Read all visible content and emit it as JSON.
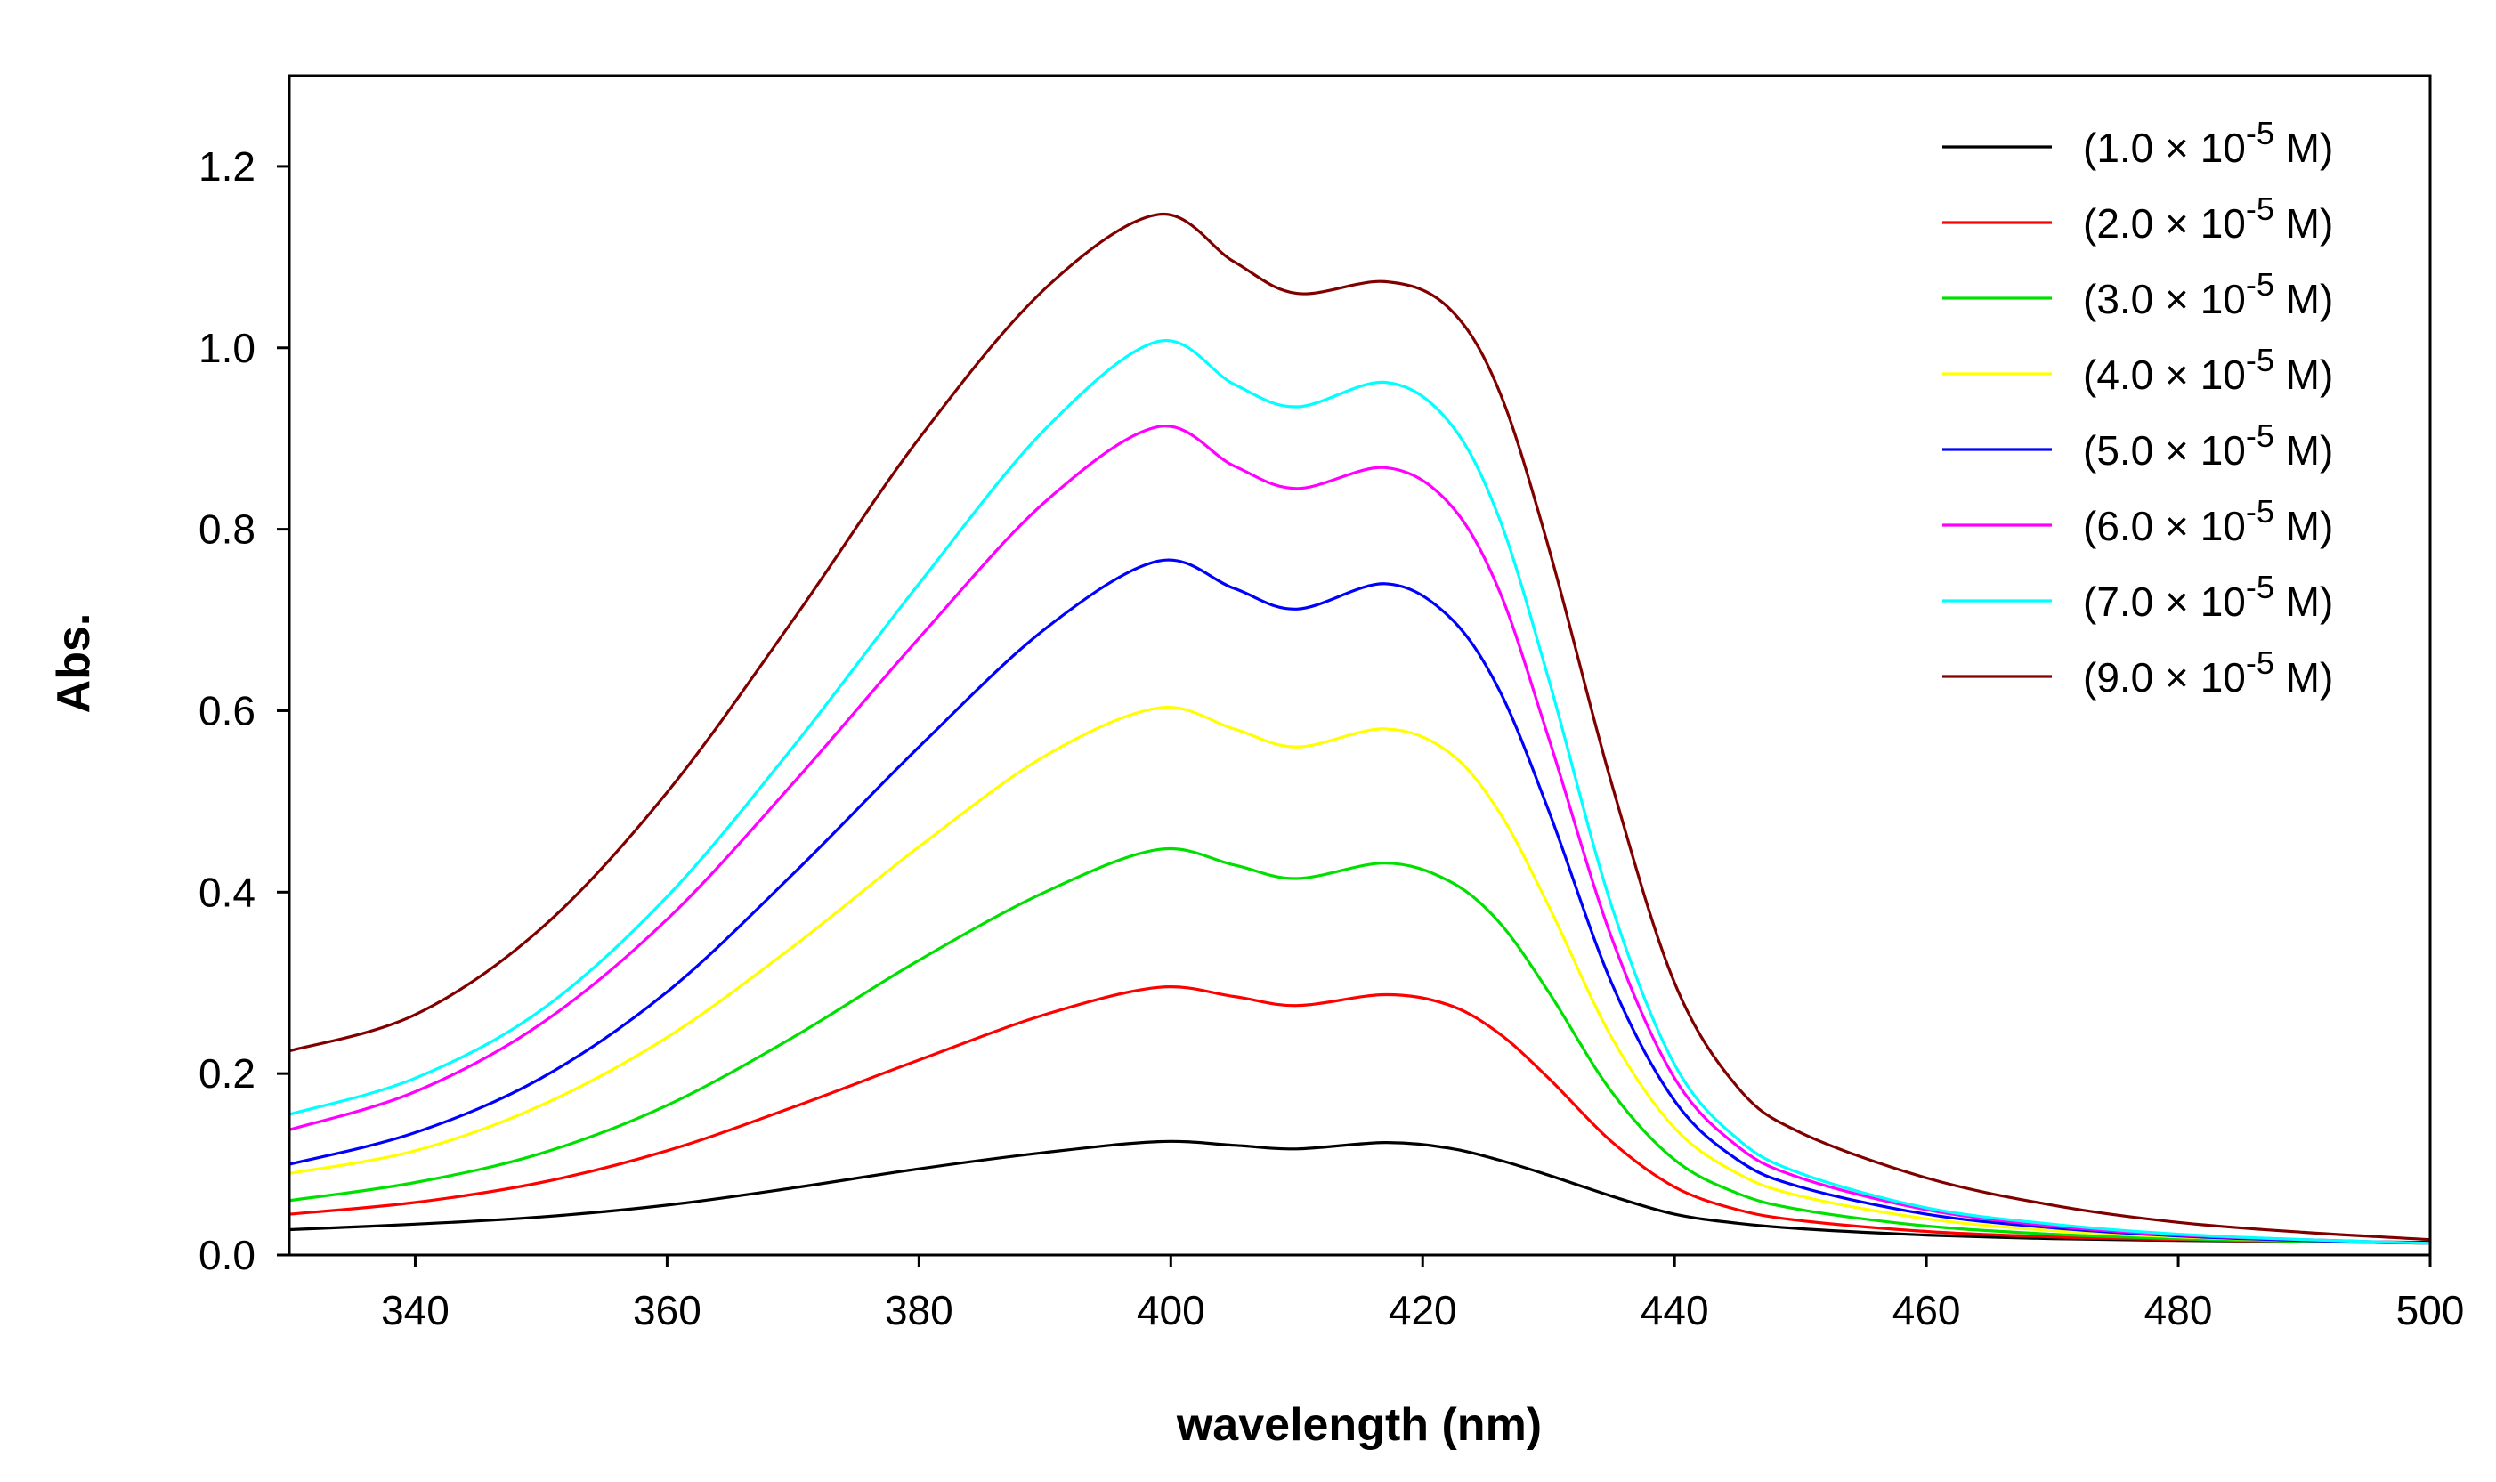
{
  "chart_data": {
    "type": "line",
    "title": "",
    "xlabel": "wavelength (nm)",
    "ylabel": "Abs.",
    "xlim": [
      330,
      500
    ],
    "ylim": [
      0.0,
      1.3
    ],
    "x_ticks": [
      340,
      360,
      380,
      400,
      420,
      440,
      460,
      480,
      500
    ],
    "x_tick_labels": [
      "340",
      "360",
      "380",
      "400",
      "420",
      "440",
      "460",
      "480",
      "500"
    ],
    "y_ticks": [
      0.0,
      0.2,
      0.4,
      0.6,
      0.8,
      1.0,
      1.2
    ],
    "y_tick_labels": [
      "0.0",
      "0.2",
      "0.4",
      "0.6",
      "0.8",
      "1.0",
      "1.2"
    ],
    "grid": false,
    "legend_position": "top-right",
    "x": [
      330,
      340,
      350,
      360,
      370,
      380,
      390,
      399,
      405,
      410,
      417,
      422,
      426,
      430,
      435,
      440,
      445,
      450,
      460,
      470,
      480,
      490,
      500
    ],
    "series": [
      {
        "name_prefix": "(1.0 × 10",
        "exponent": "-5",
        "name_suffix": " M)",
        "color": "#000000",
        "values": [
          0.028,
          0.034,
          0.042,
          0.055,
          0.074,
          0.095,
          0.113,
          0.125,
          0.121,
          0.117,
          0.124,
          0.118,
          0.105,
          0.088,
          0.065,
          0.045,
          0.035,
          0.029,
          0.022,
          0.018,
          0.016,
          0.015,
          0.014
        ]
      },
      {
        "name_prefix": "(2.0 × 10",
        "exponent": "-5",
        "name_suffix": " M)",
        "color": "#ff0000",
        "values": [
          0.045,
          0.058,
          0.08,
          0.115,
          0.163,
          0.215,
          0.265,
          0.295,
          0.285,
          0.275,
          0.287,
          0.276,
          0.245,
          0.195,
          0.125,
          0.075,
          0.05,
          0.038,
          0.026,
          0.02,
          0.017,
          0.015,
          0.013
        ]
      },
      {
        "name_prefix": "(3.0 × 10",
        "exponent": "-5",
        "name_suffix": " M)",
        "color": "#00e000",
        "values": [
          0.06,
          0.08,
          0.112,
          0.165,
          0.24,
          0.325,
          0.4,
          0.447,
          0.43,
          0.415,
          0.432,
          0.413,
          0.368,
          0.29,
          0.18,
          0.105,
          0.068,
          0.05,
          0.032,
          0.023,
          0.018,
          0.015,
          0.013
        ]
      },
      {
        "name_prefix": "(4.0 × 10",
        "exponent": "-5",
        "name_suffix": " M)",
        "color": "#ffff00",
        "values": [
          0.09,
          0.115,
          0.165,
          0.24,
          0.34,
          0.45,
          0.55,
          0.603,
          0.58,
          0.56,
          0.58,
          0.555,
          0.49,
          0.385,
          0.24,
          0.14,
          0.09,
          0.065,
          0.04,
          0.027,
          0.02,
          0.016,
          0.013
        ]
      },
      {
        "name_prefix": "(5.0 × 10",
        "exponent": "-5",
        "name_suffix": " M)",
        "color": "#0000ff",
        "values": [
          0.1,
          0.135,
          0.195,
          0.29,
          0.42,
          0.56,
          0.69,
          0.765,
          0.735,
          0.712,
          0.74,
          0.705,
          0.625,
          0.49,
          0.3,
          0.17,
          0.105,
          0.075,
          0.045,
          0.03,
          0.021,
          0.016,
          0.013
        ]
      },
      {
        "name_prefix": "(6.0 × 10",
        "exponent": "-5",
        "name_suffix": " M)",
        "color": "#ff00ff",
        "values": [
          0.138,
          0.18,
          0.255,
          0.37,
          0.52,
          0.68,
          0.83,
          0.913,
          0.87,
          0.845,
          0.868,
          0.83,
          0.735,
          0.57,
          0.35,
          0.195,
          0.12,
          0.085,
          0.05,
          0.032,
          0.022,
          0.017,
          0.013
        ]
      },
      {
        "name_prefix": "(7.0 × 10",
        "exponent": "-5",
        "name_suffix": " M)",
        "color": "#00ffff",
        "values": [
          0.155,
          0.195,
          0.27,
          0.395,
          0.56,
          0.74,
          0.91,
          1.007,
          0.96,
          0.935,
          0.962,
          0.92,
          0.815,
          0.635,
          0.385,
          0.21,
          0.128,
          0.09,
          0.052,
          0.034,
          0.023,
          0.017,
          0.013
        ]
      },
      {
        "name_prefix": "(9.0 × 10",
        "exponent": "-5",
        "name_suffix": " M)",
        "color": "#800000",
        "values": [
          0.225,
          0.265,
          0.36,
          0.51,
          0.7,
          0.9,
          1.065,
          1.147,
          1.095,
          1.06,
          1.073,
          1.045,
          0.955,
          0.78,
          0.52,
          0.3,
          0.185,
          0.135,
          0.085,
          0.055,
          0.036,
          0.025,
          0.017
        ]
      }
    ]
  }
}
